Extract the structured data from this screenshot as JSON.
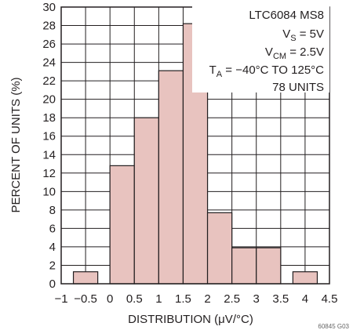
{
  "chart_data": {
    "type": "bar",
    "title": "",
    "xlabel": "DISTRIBUTION (μV/°C)",
    "ylabel": "PERCENT OF UNITS (%)",
    "xlim": [
      -1,
      4.5
    ],
    "ylim": [
      0,
      30
    ],
    "x_ticks": [
      "−1",
      "−0.5",
      "0",
      "0.5",
      "1",
      "1.5",
      "2",
      "2.5",
      "3",
      "3.5",
      "4",
      "4.5"
    ],
    "y_ticks": [
      "0",
      "2",
      "4",
      "6",
      "8",
      "10",
      "12",
      "14",
      "16",
      "18",
      "20",
      "22",
      "24",
      "26",
      "28",
      "30"
    ],
    "grid": true,
    "bin_width": 0.5,
    "bins": [
      {
        "start": -0.75,
        "value": 1.3
      },
      {
        "start": -0.25,
        "value": 0
      },
      {
        "start": 0.0,
        "value": 12.8
      },
      {
        "start": 0.5,
        "value": 18.0
      },
      {
        "start": 1.0,
        "value": 23.1
      },
      {
        "start": 1.5,
        "value": 28.2
      },
      {
        "start": 2.0,
        "value": 7.7
      },
      {
        "start": 2.5,
        "value": 3.9
      },
      {
        "start": 3.0,
        "value": 3.9
      },
      {
        "start": 3.75,
        "value": 1.3
      }
    ],
    "legend_lines": [
      "LTC6084 MS8",
      "VS = 5V",
      "VCM = 2.5V",
      "TA = −40°C TO 125°C",
      "78 UNITS"
    ],
    "legend_placement": "top-right",
    "footnote": "60845 G03"
  },
  "colors": {
    "bar_fill": "#e8c3bf",
    "bar_stroke": "#231f20",
    "grid": "#231f20",
    "text": "#231f20"
  }
}
